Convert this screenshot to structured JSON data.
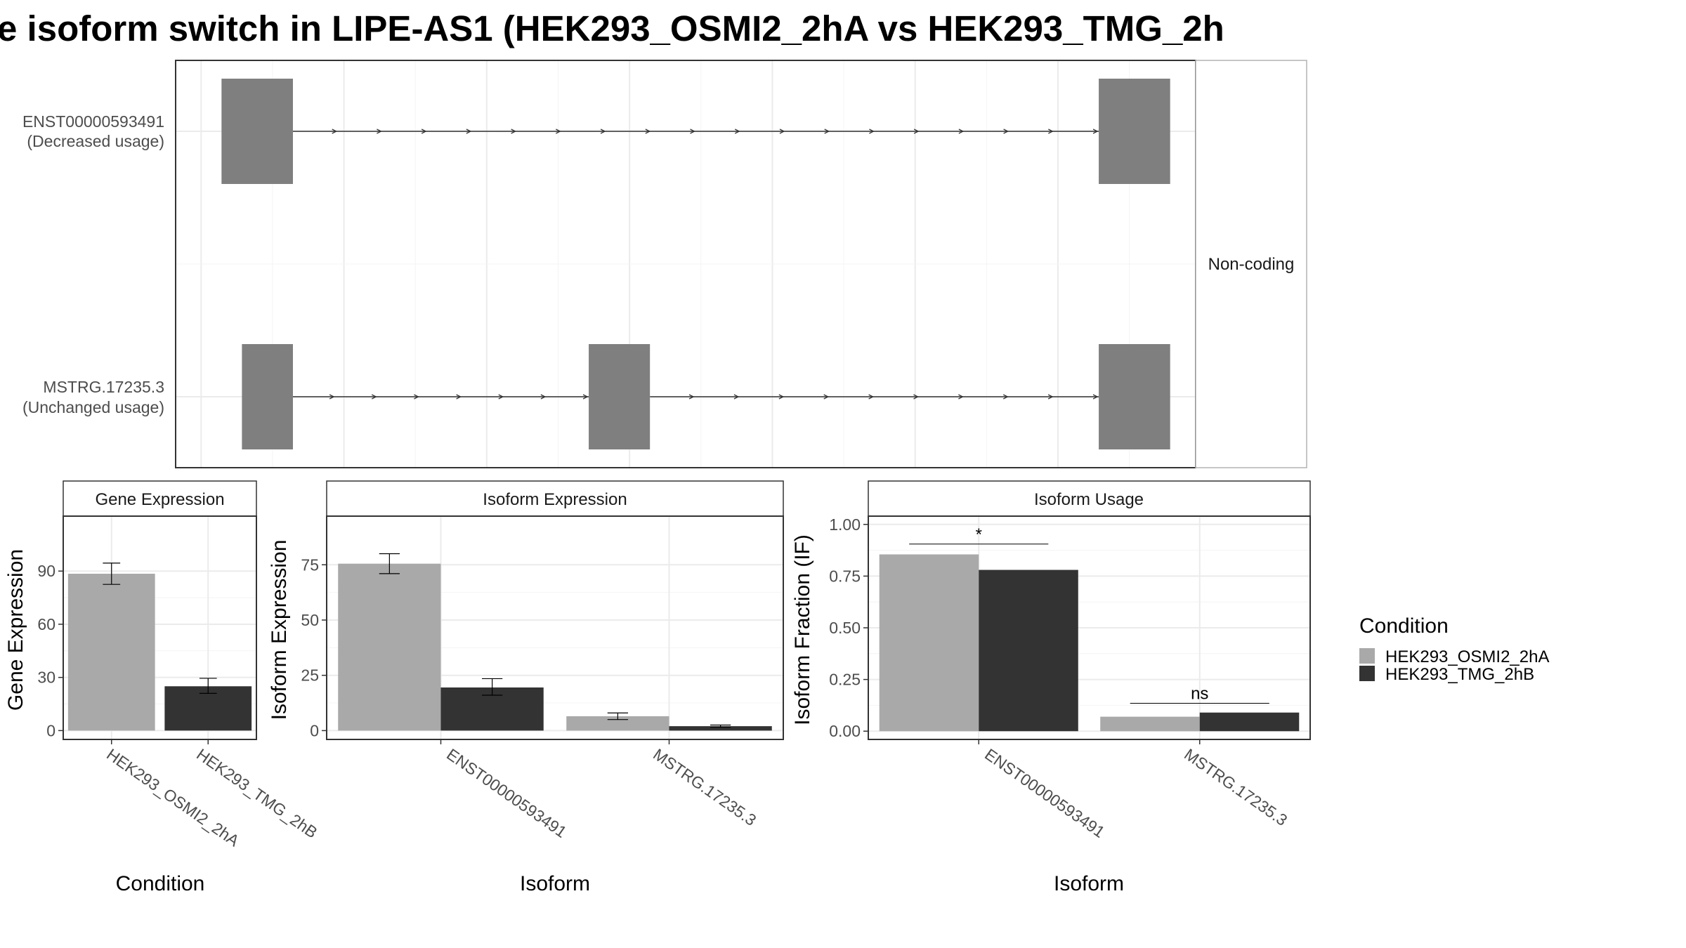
{
  "title": "e isoform switch in LIPE-AS1 (HEK293_OSMI2_2hA vs HEK293_TMG_2h",
  "colors": {
    "condition_a": "#a9a9a9",
    "condition_b": "#333333",
    "exon": "#7f7f7f",
    "grid": "#ebebeb",
    "border": "#333333"
  },
  "chart_data": [
    {
      "type": "transcript-structure",
      "facet_label": "Non-coding",
      "transcripts": [
        {
          "id": "ENST00000593491",
          "usage_label": "(Decreased usage)",
          "exons": [
            [
              0.045,
              0.115
            ],
            [
              0.905,
              0.975
            ]
          ]
        },
        {
          "id": "MSTRG.17235.3",
          "usage_label": "(Unchanged usage)",
          "exons": [
            [
              0.065,
              0.115
            ],
            [
              0.405,
              0.465
            ],
            [
              0.905,
              0.975
            ]
          ]
        }
      ]
    },
    {
      "type": "bar",
      "strip": "Gene Expression",
      "xlabel": "Condition",
      "ylabel": "Gene Expression",
      "categories": [
        "HEK293_OSMI2_2hA",
        "HEK293_TMG_2hB"
      ],
      "values": [
        88.5,
        25
      ],
      "errors": [
        [
          82.5,
          94.5
        ],
        [
          21,
          29.5
        ]
      ],
      "yticks": [
        0,
        30,
        60,
        90
      ],
      "ylim": [
        -5,
        121
      ]
    },
    {
      "type": "bar",
      "strip": "Isoform Expression",
      "xlabel": "Isoform",
      "ylabel": "Isoform Expression",
      "categories": [
        "ENST00000593491",
        "MSTRG.17235.3"
      ],
      "series": [
        {
          "name": "HEK293_OSMI2_2hA",
          "values": [
            75.5,
            6.5
          ],
          "errors": [
            [
              71,
              80
            ],
            [
              5,
              8
            ]
          ]
        },
        {
          "name": "HEK293_TMG_2hB",
          "values": [
            19.5,
            2
          ],
          "errors": [
            [
              16,
              23.5
            ],
            [
              1.5,
              2.5
            ]
          ]
        }
      ],
      "yticks": [
        0,
        25,
        50,
        75
      ],
      "ylim": [
        -4,
        97
      ]
    },
    {
      "type": "bar",
      "strip": "Isoform Usage",
      "xlabel": "Isoform",
      "ylabel": "Isoform Fraction (IF)",
      "categories": [
        "ENST00000593491",
        "MSTRG.17235.3"
      ],
      "series": [
        {
          "name": "HEK293_OSMI2_2hA",
          "values": [
            0.855,
            0.07
          ]
        },
        {
          "name": "HEK293_TMG_2hB",
          "values": [
            0.78,
            0.09
          ]
        }
      ],
      "significance": [
        {
          "label": "*",
          "y": 0.905
        },
        {
          "label": "ns",
          "y": 0.135
        }
      ],
      "yticks": [
        0,
        0.25,
        0.5,
        0.75,
        1
      ],
      "ytick_labels": [
        "0.00",
        "0.25",
        "0.50",
        "0.75",
        "1.00"
      ],
      "ylim": [
        -0.04,
        1.04
      ]
    }
  ],
  "legend": {
    "title": "Condition",
    "entries": [
      "HEK293_OSMI2_2hA",
      "HEK293_TMG_2hB"
    ]
  }
}
